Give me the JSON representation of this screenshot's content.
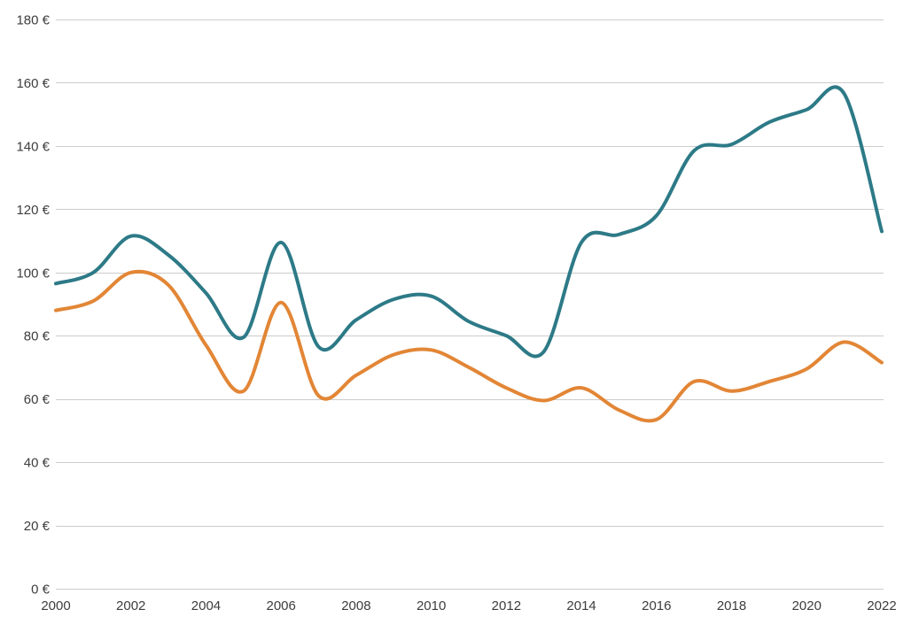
{
  "chart_data": {
    "type": "line",
    "curve": "smooth",
    "title": "",
    "xlabel": "",
    "ylabel": "",
    "xlim": [
      2000,
      2022
    ],
    "ylim": [
      0,
      180
    ],
    "grid": "horizontal",
    "legend": "none",
    "background_color": "#ffffff",
    "gridline_color": "#cccccc",
    "label_color": "#3d3d3d",
    "x": [
      2000,
      2001,
      2002,
      2003,
      2004,
      2005,
      2006,
      2007,
      2008,
      2009,
      2010,
      2011,
      2012,
      2013,
      2014,
      2015,
      2016,
      2017,
      2018,
      2019,
      2020,
      2021,
      2022
    ],
    "series": [
      {
        "name": "teal-line",
        "color": "#2d7a87",
        "values": [
          96.5,
          100,
          111.5,
          105.5,
          93.5,
          79.5,
          109.5,
          76.5,
          85,
          91.5,
          92.5,
          84.5,
          80,
          75,
          109.5,
          112,
          118,
          138.5,
          140.5,
          147.5,
          151.5,
          156.5,
          113
        ]
      },
      {
        "name": "orange-line",
        "color": "#e28636",
        "values": [
          88,
          91,
          100,
          96,
          77,
          62.5,
          90.5,
          61,
          67.5,
          74,
          75.5,
          70,
          63.5,
          59.5,
          63.5,
          56.5,
          53.5,
          65.5,
          62.5,
          65.5,
          69.5,
          78,
          71.5
        ]
      }
    ],
    "y_ticks": [
      {
        "value": 0,
        "label": "0 €"
      },
      {
        "value": 20,
        "label": "20 €"
      },
      {
        "value": 40,
        "label": "40 €"
      },
      {
        "value": 60,
        "label": "60 €"
      },
      {
        "value": 80,
        "label": "80 €"
      },
      {
        "value": 100,
        "label": "100 €"
      },
      {
        "value": 120,
        "label": "120 €"
      },
      {
        "value": 140,
        "label": "140 €"
      },
      {
        "value": 160,
        "label": "160 €"
      },
      {
        "value": 180,
        "label": "180 €"
      }
    ],
    "x_ticks": [
      {
        "value": 2000,
        "label": "2000"
      },
      {
        "value": 2002,
        "label": "2002"
      },
      {
        "value": 2004,
        "label": "2004"
      },
      {
        "value": 2006,
        "label": "2006"
      },
      {
        "value": 2008,
        "label": "2008"
      },
      {
        "value": 2010,
        "label": "2010"
      },
      {
        "value": 2012,
        "label": "2012"
      },
      {
        "value": 2014,
        "label": "2014"
      },
      {
        "value": 2016,
        "label": "2016"
      },
      {
        "value": 2018,
        "label": "2018"
      },
      {
        "value": 2020,
        "label": "2020"
      },
      {
        "value": 2022,
        "label": "2022"
      }
    ]
  }
}
